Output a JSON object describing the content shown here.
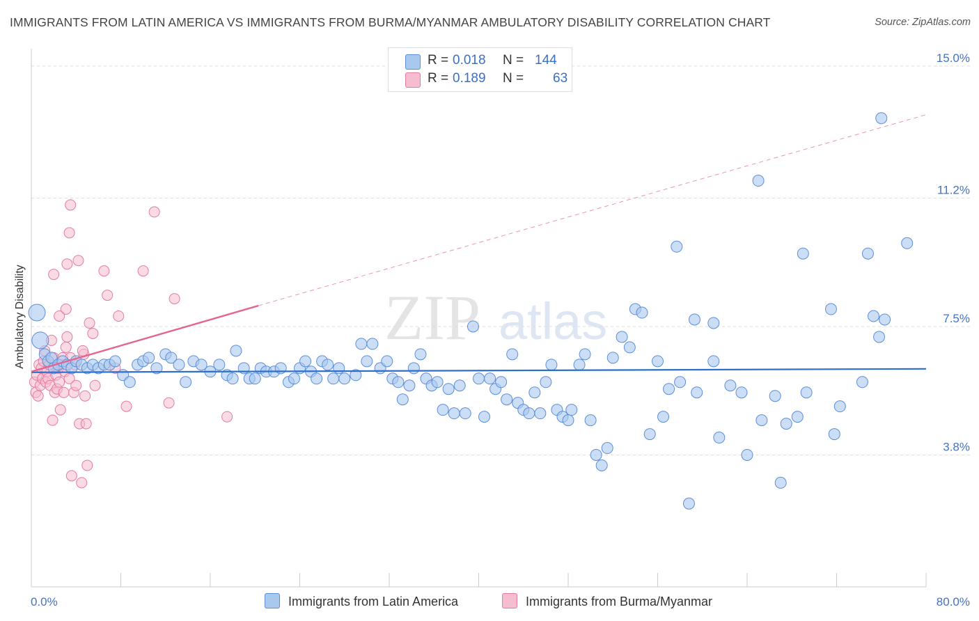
{
  "title": "IMMIGRANTS FROM LATIN AMERICA VS IMMIGRANTS FROM BURMA/MYANMAR AMBULATORY DISABILITY CORRELATION CHART",
  "source": "Source: ZipAtlas.com",
  "watermark": {
    "zip": "ZIP",
    "atlas": "atlas"
  },
  "colors": {
    "blue_fill": "#a9c8ee",
    "blue_stroke": "#5b8ed8",
    "blue_line": "#2e6fcc",
    "pink_fill": "#f6bcd0",
    "pink_stroke": "#e27ba0",
    "pink_line": "#e2668f",
    "tick_text": "#4472c4",
    "grid": "#dddddd"
  },
  "legend": {
    "rows": [
      {
        "r_label": "R =",
        "r_value": "0.018",
        "n_label": "N =",
        "n_value": "144",
        "color": "#a9c8ee",
        "stroke": "#5b8ed8"
      },
      {
        "r_label": "R =",
        "r_value": "0.189",
        "n_label": "N =",
        "n_value": "63",
        "color": "#f6bcd0",
        "stroke": "#e27ba0"
      }
    ]
  },
  "bottom_legend": {
    "latin": "Immigrants from Latin America",
    "burma": "Immigrants from Burma/Myanmar"
  },
  "chart_data": {
    "type": "scatter",
    "title": "IMMIGRANTS FROM LATIN AMERICA VS IMMIGRANTS FROM BURMA/MYANMAR AMBULATORY DISABILITY CORRELATION CHART",
    "xlabel": "",
    "ylabel": "Ambulatory Disability",
    "xlim": [
      0,
      80
    ],
    "ylim": [
      0,
      15.5
    ],
    "x_tick_labels": [
      {
        "value": 0,
        "label": "0.0%"
      },
      {
        "value": 80,
        "label": "80.0%"
      }
    ],
    "y_ticks": [
      {
        "value": 3.8,
        "label": "3.8%"
      },
      {
        "value": 7.5,
        "label": "7.5%"
      },
      {
        "value": 11.2,
        "label": "11.2%"
      },
      {
        "value": 15.0,
        "label": "15.0%"
      }
    ],
    "grid": "horizontal dashed",
    "legend_position": "top-center",
    "series": [
      {
        "name": "Immigrants from Latin America",
        "R": 0.018,
        "N": 144,
        "trend": {
          "x": [
            0,
            80
          ],
          "y": [
            6.18,
            6.28
          ],
          "style": "solid"
        },
        "points": [
          [
            0.5,
            7.9
          ],
          [
            0.8,
            7.1
          ],
          [
            1.2,
            6.7
          ],
          [
            1.5,
            6.5
          ],
          [
            1.8,
            6.6
          ],
          [
            2.0,
            6.3
          ],
          [
            2.4,
            6.4
          ],
          [
            2.8,
            6.5
          ],
          [
            3.2,
            6.4
          ],
          [
            3.6,
            6.3
          ],
          [
            4.0,
            6.5
          ],
          [
            4.5,
            6.4
          ],
          [
            5.0,
            6.3
          ],
          [
            5.5,
            6.4
          ],
          [
            6.0,
            6.3
          ],
          [
            6.5,
            6.4
          ],
          [
            7.0,
            6.4
          ],
          [
            7.5,
            6.5
          ],
          [
            8.2,
            6.1
          ],
          [
            8.8,
            5.9
          ],
          [
            9.5,
            6.4
          ],
          [
            10.0,
            6.5
          ],
          [
            10.5,
            6.6
          ],
          [
            11.2,
            6.3
          ],
          [
            12.0,
            6.7
          ],
          [
            12.5,
            6.6
          ],
          [
            13.2,
            6.4
          ],
          [
            13.8,
            5.9
          ],
          [
            14.5,
            6.5
          ],
          [
            15.2,
            6.4
          ],
          [
            16.0,
            6.2
          ],
          [
            16.8,
            6.4
          ],
          [
            17.5,
            6.1
          ],
          [
            18.0,
            6.0
          ],
          [
            18.3,
            6.8
          ],
          [
            19.0,
            6.3
          ],
          [
            19.5,
            6.0
          ],
          [
            20.0,
            6.0
          ],
          [
            20.5,
            6.3
          ],
          [
            21.0,
            6.2
          ],
          [
            21.7,
            6.2
          ],
          [
            22.3,
            6.3
          ],
          [
            23.0,
            5.9
          ],
          [
            23.5,
            6.0
          ],
          [
            24.0,
            6.3
          ],
          [
            24.5,
            6.5
          ],
          [
            25.0,
            6.2
          ],
          [
            25.5,
            6.0
          ],
          [
            26.0,
            6.5
          ],
          [
            26.5,
            6.4
          ],
          [
            27.0,
            6.0
          ],
          [
            27.5,
            6.3
          ],
          [
            28.0,
            6.0
          ],
          [
            29.0,
            6.1
          ],
          [
            29.5,
            7.0
          ],
          [
            30.0,
            6.5
          ],
          [
            30.5,
            7.0
          ],
          [
            31.2,
            6.3
          ],
          [
            31.8,
            6.5
          ],
          [
            32.3,
            6.0
          ],
          [
            32.8,
            5.9
          ],
          [
            33.2,
            5.4
          ],
          [
            33.8,
            5.8
          ],
          [
            34.2,
            6.3
          ],
          [
            34.8,
            6.7
          ],
          [
            35.3,
            6.0
          ],
          [
            35.8,
            5.8
          ],
          [
            36.3,
            5.9
          ],
          [
            36.8,
            5.1
          ],
          [
            37.3,
            5.7
          ],
          [
            37.8,
            5.0
          ],
          [
            38.3,
            5.8
          ],
          [
            38.8,
            5.0
          ],
          [
            39.5,
            7.5
          ],
          [
            40.0,
            6.0
          ],
          [
            40.5,
            4.9
          ],
          [
            41.0,
            6.0
          ],
          [
            41.5,
            5.7
          ],
          [
            42.0,
            5.9
          ],
          [
            42.5,
            5.4
          ],
          [
            43.0,
            6.7
          ],
          [
            43.5,
            5.3
          ],
          [
            44.0,
            5.1
          ],
          [
            44.5,
            5.0
          ],
          [
            45.0,
            5.6
          ],
          [
            45.5,
            5.0
          ],
          [
            46.0,
            5.9
          ],
          [
            46.5,
            6.4
          ],
          [
            47.0,
            5.1
          ],
          [
            47.5,
            4.9
          ],
          [
            48.0,
            4.8
          ],
          [
            48.3,
            5.1
          ],
          [
            49.0,
            6.4
          ],
          [
            49.5,
            6.7
          ],
          [
            50.0,
            4.8
          ],
          [
            50.5,
            3.8
          ],
          [
            51.0,
            3.5
          ],
          [
            51.5,
            4.0
          ],
          [
            52.0,
            6.6
          ],
          [
            52.8,
            7.2
          ],
          [
            53.5,
            6.9
          ],
          [
            54.0,
            8.0
          ],
          [
            54.6,
            7.9
          ],
          [
            55.3,
            4.4
          ],
          [
            56.0,
            6.5
          ],
          [
            56.5,
            4.9
          ],
          [
            57.0,
            5.7
          ],
          [
            57.7,
            9.8
          ],
          [
            58.0,
            5.9
          ],
          [
            58.8,
            2.4
          ],
          [
            59.3,
            7.7
          ],
          [
            59.5,
            5.6
          ],
          [
            61.0,
            7.6
          ],
          [
            61.0,
            6.5
          ],
          [
            61.5,
            4.3
          ],
          [
            62.5,
            5.8
          ],
          [
            63.5,
            5.6
          ],
          [
            64.0,
            3.8
          ],
          [
            65.0,
            11.7
          ],
          [
            65.3,
            4.8
          ],
          [
            66.5,
            5.5
          ],
          [
            67.0,
            3.0
          ],
          [
            67.5,
            4.7
          ],
          [
            68.5,
            4.9
          ],
          [
            69.0,
            9.6
          ],
          [
            69.3,
            5.6
          ],
          [
            71.5,
            8.0
          ],
          [
            71.8,
            4.4
          ],
          [
            72.3,
            5.2
          ],
          [
            74.3,
            5.9
          ],
          [
            74.8,
            9.6
          ],
          [
            75.3,
            7.8
          ],
          [
            75.8,
            7.2
          ],
          [
            76.3,
            7.7
          ],
          [
            78.3,
            9.9
          ],
          [
            76.0,
            13.5
          ]
        ]
      },
      {
        "name": "Immigrants from Burma/Myanmar",
        "R": 0.189,
        "N": 63,
        "trend": {
          "x": [
            0,
            20.3
          ],
          "y": [
            6.2,
            8.1
          ],
          "style": "solid",
          "extended_to": [
            80,
            13.6
          ],
          "extended_style": "dashed"
        },
        "points": [
          [
            0.3,
            5.9
          ],
          [
            0.4,
            5.6
          ],
          [
            0.5,
            6.1
          ],
          [
            0.6,
            5.5
          ],
          [
            0.7,
            6.4
          ],
          [
            0.8,
            5.8
          ],
          [
            0.9,
            6.3
          ],
          [
            1.0,
            6.0
          ],
          [
            1.1,
            6.5
          ],
          [
            1.2,
            6.8
          ],
          [
            1.3,
            5.9
          ],
          [
            1.4,
            6.2
          ],
          [
            1.5,
            6.0
          ],
          [
            1.6,
            6.4
          ],
          [
            1.7,
            5.8
          ],
          [
            1.8,
            7.1
          ],
          [
            1.9,
            4.8
          ],
          [
            2.0,
            6.6
          ],
          [
            2.1,
            5.6
          ],
          [
            2.2,
            6.1
          ],
          [
            2.3,
            5.7
          ],
          [
            2.4,
            6.3
          ],
          [
            2.5,
            5.9
          ],
          [
            2.6,
            5.1
          ],
          [
            2.7,
            6.4
          ],
          [
            2.8,
            6.6
          ],
          [
            2.9,
            5.6
          ],
          [
            3.0,
            6.2
          ],
          [
            3.1,
            6.9
          ],
          [
            3.2,
            7.2
          ],
          [
            3.4,
            6.0
          ],
          [
            3.5,
            6.6
          ],
          [
            3.6,
            3.2
          ],
          [
            3.8,
            5.6
          ],
          [
            3.9,
            6.4
          ],
          [
            4.0,
            5.8
          ],
          [
            4.3,
            4.7
          ],
          [
            4.5,
            3.0
          ],
          [
            4.7,
            6.7
          ],
          [
            4.8,
            5.5
          ],
          [
            4.9,
            4.7
          ],
          [
            5.0,
            3.5
          ],
          [
            5.2,
            7.6
          ],
          [
            5.5,
            7.3
          ],
          [
            5.7,
            5.8
          ],
          [
            3.5,
            11.0
          ],
          [
            3.4,
            10.2
          ],
          [
            2.0,
            9.0
          ],
          [
            3.2,
            9.3
          ],
          [
            4.2,
            9.4
          ],
          [
            6.5,
            9.1
          ],
          [
            6.8,
            8.4
          ],
          [
            7.8,
            7.8
          ],
          [
            8.5,
            5.2
          ],
          [
            10.0,
            9.1
          ],
          [
            11.0,
            10.8
          ],
          [
            12.3,
            5.3
          ],
          [
            12.8,
            8.3
          ],
          [
            17.5,
            4.9
          ],
          [
            3.1,
            8.0
          ],
          [
            2.5,
            7.8
          ],
          [
            7.5,
            6.3
          ],
          [
            4.6,
            6.8
          ]
        ]
      }
    ]
  }
}
